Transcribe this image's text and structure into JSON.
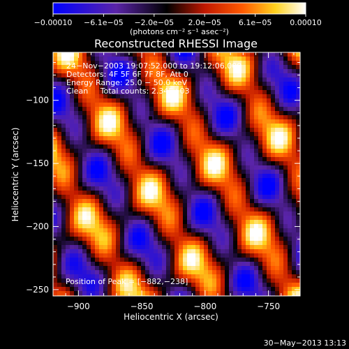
{
  "chart_data": {
    "type": "heatmap",
    "title": "Reconstructed RHESSI Image",
    "xlabel": "Heliocentric X (arcsec)",
    "ylabel": "Heliocentric Y (arcsec)",
    "xlim": [
      -920,
      -725
    ],
    "ylim": [
      -255,
      -62
    ],
    "xticks": [
      -900,
      -850,
      -800,
      -750
    ],
    "xtick_labels": [
      "−900",
      "−850",
      "−800",
      "−750"
    ],
    "yticks": [
      -100,
      -150,
      -200,
      -250
    ],
    "ytick_labels": [
      "−100",
      "−150",
      "−200",
      "−250"
    ],
    "colorbar": {
      "min": -0.0001,
      "max": 0.0001,
      "tick_labels": [
        "−0.00010",
        "−6.1e−05",
        "−2.0e−05",
        "2.0e−05",
        "6.1e−05",
        "0.00010"
      ],
      "unit_label": "(photons cm⁻² s⁻¹ asec⁻²)",
      "colors": [
        "#0000ff",
        "#5a24a8",
        "#000000",
        "#c01800",
        "#ff5a00",
        "#ffd21e",
        "#ffffff"
      ]
    },
    "annotations": [
      "24−Nov−2003 19:07:52.000 to 19:12:06.000",
      "Detectors: 4F 5F 6F 7F 8F, Att 0",
      "Energy Range: 25.0 − 50.0 keV",
      "Clean     Total counts: 2.34E+03"
    ],
    "peak_label": "Position of Peak = [−882,−238]",
    "peak": [
      -882,
      -238
    ],
    "marker": [
      -843,
      -114
    ]
  },
  "footer": {
    "timestamp": "30−May−2013 13:13"
  }
}
